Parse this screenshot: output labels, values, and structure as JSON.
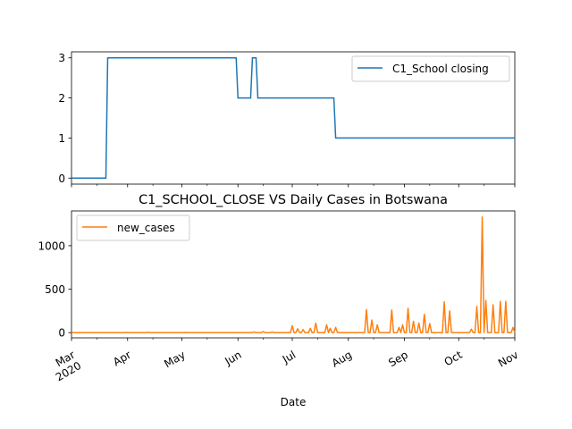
{
  "chart_data": [
    {
      "type": "line",
      "title": "",
      "xlabel": "",
      "ylabel": "",
      "ylim": [
        -0.15,
        3.15
      ],
      "yticks": [
        0,
        1,
        2,
        3
      ],
      "xlim": [
        "2020-03-01",
        "2020-11-01"
      ],
      "x_tick_labels_visible": false,
      "grid": false,
      "legend": {
        "position": "upper right",
        "entries": [
          "C1_School closing"
        ]
      },
      "series": [
        {
          "name": "C1_School closing",
          "color": "#1f77b4",
          "steps": [
            {
              "x": "2020-03-01",
              "y": 0
            },
            {
              "x": "2020-03-21",
              "y": 3
            },
            {
              "x": "2020-06-01",
              "y": 2
            },
            {
              "x": "2020-06-09",
              "y": 3
            },
            {
              "x": "2020-06-12",
              "y": 2
            },
            {
              "x": "2020-07-25",
              "y": 1
            },
            {
              "x": "2020-11-01",
              "y": 1
            }
          ]
        }
      ]
    },
    {
      "type": "line",
      "title": "C1_SCHOOL_CLOSE VS Daily Cases in Botswana",
      "xlabel": "Date",
      "ylabel": "",
      "ylim": [
        -60,
        1400
      ],
      "yticks": [
        0,
        500,
        1000
      ],
      "xlim": [
        "2020-03-01",
        "2020-11-01"
      ],
      "xticks": [
        {
          "date": "2020-03-01",
          "label": "Mar",
          "sublabel": "2020"
        },
        {
          "date": "2020-04-01",
          "label": "Apr"
        },
        {
          "date": "2020-05-01",
          "label": "May"
        },
        {
          "date": "2020-06-01",
          "label": "Jun"
        },
        {
          "date": "2020-07-01",
          "label": "Jul"
        },
        {
          "date": "2020-08-01",
          "label": "Aug"
        },
        {
          "date": "2020-09-01",
          "label": "Sep"
        },
        {
          "date": "2020-10-01",
          "label": "Oct"
        },
        {
          "date": "2020-11-01",
          "label": "Nov"
        }
      ],
      "grid": false,
      "legend": {
        "position": "upper left",
        "entries": [
          "new_cases"
        ]
      },
      "series": [
        {
          "name": "new_cases",
          "color": "#ff7f0e",
          "baseline": 0,
          "spikes": [
            {
              "x": "2020-04-01",
              "y": 3
            },
            {
              "x": "2020-04-12",
              "y": 5
            },
            {
              "x": "2020-05-03",
              "y": 2
            },
            {
              "x": "2020-06-10",
              "y": 8
            },
            {
              "x": "2020-06-15",
              "y": 12
            },
            {
              "x": "2020-06-20",
              "y": 8
            },
            {
              "x": "2020-07-01",
              "y": 80
            },
            {
              "x": "2020-07-04",
              "y": 45
            },
            {
              "x": "2020-07-07",
              "y": 35
            },
            {
              "x": "2020-07-11",
              "y": 50
            },
            {
              "x": "2020-07-14",
              "y": 110
            },
            {
              "x": "2020-07-20",
              "y": 90
            },
            {
              "x": "2020-07-22",
              "y": 50
            },
            {
              "x": "2020-07-25",
              "y": 60
            },
            {
              "x": "2020-08-11",
              "y": 265
            },
            {
              "x": "2020-08-14",
              "y": 145
            },
            {
              "x": "2020-08-17",
              "y": 90
            },
            {
              "x": "2020-08-25",
              "y": 260
            },
            {
              "x": "2020-08-29",
              "y": 60
            },
            {
              "x": "2020-08-31",
              "y": 90
            },
            {
              "x": "2020-09-03",
              "y": 280
            },
            {
              "x": "2020-09-06",
              "y": 130
            },
            {
              "x": "2020-09-09",
              "y": 110
            },
            {
              "x": "2020-09-12",
              "y": 210
            },
            {
              "x": "2020-09-15",
              "y": 105
            },
            {
              "x": "2020-09-23",
              "y": 355
            },
            {
              "x": "2020-09-26",
              "y": 250
            },
            {
              "x": "2020-10-08",
              "y": 40
            },
            {
              "x": "2020-10-11",
              "y": 300
            },
            {
              "x": "2020-10-14",
              "y": 1330
            },
            {
              "x": "2020-10-16",
              "y": 370
            },
            {
              "x": "2020-10-20",
              "y": 320
            },
            {
              "x": "2020-10-24",
              "y": 360
            },
            {
              "x": "2020-10-27",
              "y": 360
            },
            {
              "x": "2020-10-31",
              "y": 60
            }
          ]
        }
      ]
    }
  ]
}
